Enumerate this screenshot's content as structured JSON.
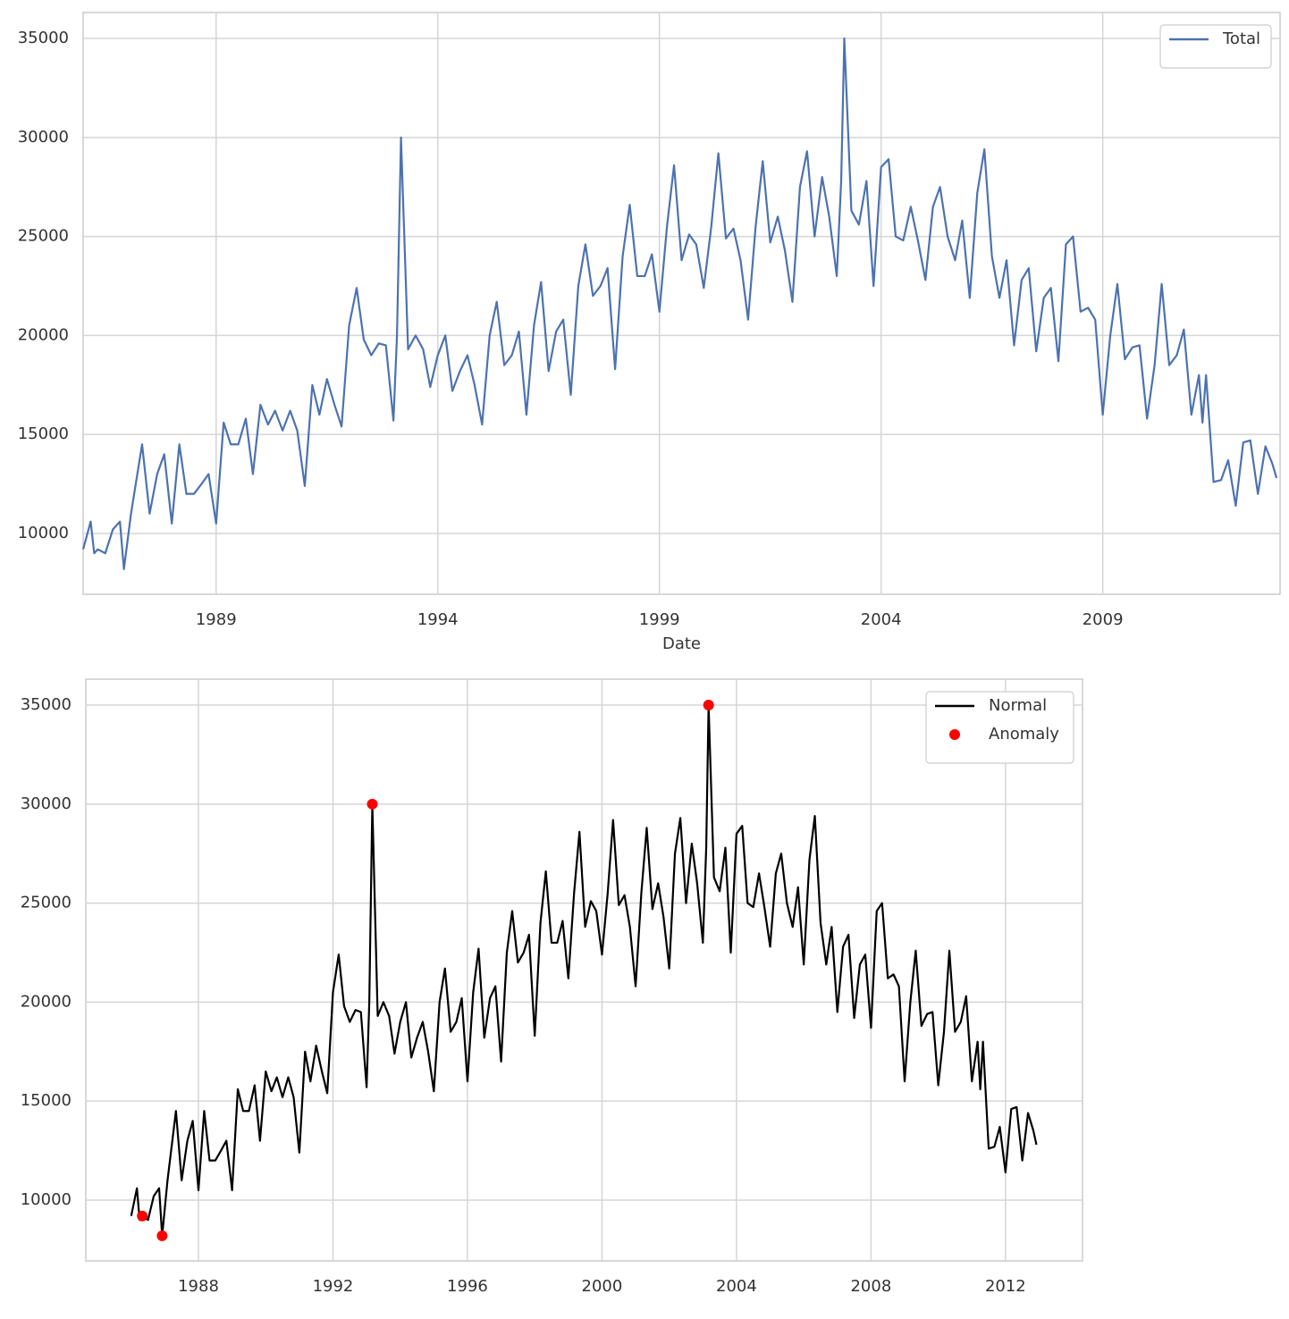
{
  "chart_data": [
    {
      "type": "line",
      "xlabel": "Date",
      "grid": true,
      "legend": "upper right",
      "xlim": [
        1986.0,
        2013.0
      ],
      "ylim": [
        6930,
        36310
      ],
      "xticks": [
        1989,
        1994,
        1999,
        2004,
        2009
      ],
      "yticks": [
        10000,
        15000,
        20000,
        25000,
        30000,
        35000
      ],
      "x": [
        1986.0,
        1986.17,
        1986.25,
        1986.33,
        1986.5,
        1986.67,
        1986.83,
        1986.92,
        1987.08,
        1987.33,
        1987.5,
        1987.67,
        1987.83,
        1988.0,
        1988.17,
        1988.33,
        1988.5,
        1988.67,
        1988.83,
        1989.0,
        1989.17,
        1989.33,
        1989.5,
        1989.67,
        1989.83,
        1990.0,
        1990.17,
        1990.33,
        1990.5,
        1990.67,
        1990.83,
        1991.0,
        1991.17,
        1991.33,
        1991.5,
        1991.67,
        1991.83,
        1992.0,
        1992.17,
        1992.33,
        1992.5,
        1992.67,
        1992.83,
        1993.0,
        1993.08,
        1993.17,
        1993.33,
        1993.5,
        1993.67,
        1993.83,
        1994.0,
        1994.17,
        1994.33,
        1994.5,
        1994.67,
        1994.83,
        1995.0,
        1995.17,
        1995.33,
        1995.5,
        1995.67,
        1995.83,
        1996.0,
        1996.17,
        1996.33,
        1996.5,
        1996.67,
        1996.83,
        1997.0,
        1997.17,
        1997.33,
        1997.5,
        1997.67,
        1997.83,
        1998.0,
        1998.17,
        1998.33,
        1998.5,
        1998.67,
        1998.83,
        1999.0,
        1999.17,
        1999.33,
        1999.5,
        1999.67,
        1999.83,
        2000.0,
        2000.17,
        2000.33,
        2000.5,
        2000.67,
        2000.83,
        2001.0,
        2001.17,
        2001.33,
        2001.5,
        2001.67,
        2001.83,
        2002.0,
        2002.17,
        2002.33,
        2002.5,
        2002.67,
        2002.83,
        2003.0,
        2003.1,
        2003.17,
        2003.33,
        2003.5,
        2003.67,
        2003.83,
        2004.0,
        2004.17,
        2004.33,
        2004.5,
        2004.67,
        2004.83,
        2005.0,
        2005.17,
        2005.33,
        2005.5,
        2005.67,
        2005.83,
        2006.0,
        2006.17,
        2006.33,
        2006.5,
        2006.67,
        2006.83,
        2007.0,
        2007.17,
        2007.33,
        2007.5,
        2007.67,
        2007.83,
        2008.0,
        2008.17,
        2008.33,
        2008.5,
        2008.67,
        2008.83,
        2009.0,
        2009.17,
        2009.33,
        2009.5,
        2009.67,
        2009.83,
        2010.0,
        2010.17,
        2010.33,
        2010.5,
        2010.67,
        2010.83,
        2011.0,
        2011.17,
        2011.25,
        2011.33,
        2011.5,
        2011.67,
        2011.83,
        2012.0,
        2012.17,
        2012.33,
        2012.5,
        2012.67,
        2012.83,
        2012.92
      ],
      "series": [
        {
          "name": "Total",
          "color": "#4c72b0",
          "values": [
            9200,
            10600,
            9000,
            9200,
            9000,
            10200,
            10600,
            8200,
            11000,
            14500,
            11000,
            13000,
            14000,
            10500,
            14500,
            12000,
            12000,
            12500,
            13000,
            10500,
            15600,
            14500,
            14500,
            15800,
            13000,
            16500,
            15500,
            16200,
            15200,
            16200,
            15200,
            12400,
            17500,
            16000,
            17800,
            16500,
            15400,
            20500,
            22400,
            19800,
            19000,
            19600,
            19500,
            15700,
            20000,
            30000,
            19300,
            20000,
            19300,
            17400,
            19000,
            20000,
            17200,
            18200,
            19000,
            17500,
            15500,
            20000,
            21700,
            18500,
            19000,
            20200,
            16000,
            20500,
            22700,
            18200,
            20200,
            20800,
            17000,
            22500,
            24600,
            22000,
            22500,
            23400,
            18300,
            24000,
            26600,
            23000,
            23000,
            24100,
            21200,
            25500,
            28600,
            23800,
            25100,
            24600,
            22400,
            25500,
            29200,
            24900,
            25400,
            23800,
            20800,
            25500,
            28800,
            24700,
            26000,
            24300,
            21700,
            27500,
            29300,
            25000,
            28000,
            26000,
            23000,
            27800,
            35000,
            26300,
            25600,
            27800,
            22500,
            28500,
            28900,
            25000,
            24800,
            26500,
            24800,
            22800,
            26500,
            27500,
            25000,
            23800,
            25800,
            21900,
            27200,
            29400,
            24000,
            21900,
            23800,
            19500,
            22800,
            23400,
            19200,
            21900,
            22400,
            18700,
            24600,
            25000,
            21200,
            21400,
            20800,
            16000,
            20000,
            22600,
            18800,
            19400,
            19500,
            15800,
            18500,
            22600,
            18500,
            19000,
            20300,
            16000,
            18000,
            15600,
            18000,
            12600,
            12700,
            13700,
            11400,
            14600,
            14700,
            12000,
            14400,
            13500,
            12800
          ]
        }
      ]
    },
    {
      "type": "line",
      "grid": true,
      "legend": "upper right",
      "xlim": [
        1984.65,
        2014.29
      ],
      "ylim": [
        6930,
        36310
      ],
      "xticks": [
        1988,
        1992,
        1996,
        2000,
        2004,
        2008,
        2012
      ],
      "yticks": [
        10000,
        15000,
        20000,
        25000,
        30000,
        35000
      ],
      "x": [
        1986.0,
        1986.17,
        1986.25,
        1986.33,
        1986.5,
        1986.67,
        1986.83,
        1986.92,
        1987.08,
        1987.33,
        1987.5,
        1987.67,
        1987.83,
        1988.0,
        1988.17,
        1988.33,
        1988.5,
        1988.67,
        1988.83,
        1989.0,
        1989.17,
        1989.33,
        1989.5,
        1989.67,
        1989.83,
        1990.0,
        1990.17,
        1990.33,
        1990.5,
        1990.67,
        1990.83,
        1991.0,
        1991.17,
        1991.33,
        1991.5,
        1991.67,
        1991.83,
        1992.0,
        1992.17,
        1992.33,
        1992.5,
        1992.67,
        1992.83,
        1993.0,
        1993.08,
        1993.17,
        1993.33,
        1993.5,
        1993.67,
        1993.83,
        1994.0,
        1994.17,
        1994.33,
        1994.5,
        1994.67,
        1994.83,
        1995.0,
        1995.17,
        1995.33,
        1995.5,
        1995.67,
        1995.83,
        1996.0,
        1996.17,
        1996.33,
        1996.5,
        1996.67,
        1996.83,
        1997.0,
        1997.17,
        1997.33,
        1997.5,
        1997.67,
        1997.83,
        1998.0,
        1998.17,
        1998.33,
        1998.5,
        1998.67,
        1998.83,
        1999.0,
        1999.17,
        1999.33,
        1999.5,
        1999.67,
        1999.83,
        2000.0,
        2000.17,
        2000.33,
        2000.5,
        2000.67,
        2000.83,
        2001.0,
        2001.17,
        2001.33,
        2001.5,
        2001.67,
        2001.83,
        2002.0,
        2002.17,
        2002.33,
        2002.5,
        2002.67,
        2002.83,
        2003.0,
        2003.1,
        2003.17,
        2003.33,
        2003.5,
        2003.67,
        2003.83,
        2004.0,
        2004.17,
        2004.33,
        2004.5,
        2004.67,
        2004.83,
        2005.0,
        2005.17,
        2005.33,
        2005.5,
        2005.67,
        2005.83,
        2006.0,
        2006.17,
        2006.33,
        2006.5,
        2006.67,
        2006.83,
        2007.0,
        2007.17,
        2007.33,
        2007.5,
        2007.67,
        2007.83,
        2008.0,
        2008.17,
        2008.33,
        2008.5,
        2008.67,
        2008.83,
        2009.0,
        2009.17,
        2009.33,
        2009.5,
        2009.67,
        2009.83,
        2010.0,
        2010.17,
        2010.33,
        2010.5,
        2010.67,
        2010.83,
        2011.0,
        2011.17,
        2011.25,
        2011.33,
        2011.5,
        2011.67,
        2011.83,
        2012.0,
        2012.17,
        2012.33,
        2012.5,
        2012.67,
        2012.83,
        2012.92
      ],
      "series": [
        {
          "name": "Normal",
          "color": "#000000",
          "values": [
            9200,
            10600,
            9000,
            9200,
            9000,
            10200,
            10600,
            8200,
            11000,
            14500,
            11000,
            13000,
            14000,
            10500,
            14500,
            12000,
            12000,
            12500,
            13000,
            10500,
            15600,
            14500,
            14500,
            15800,
            13000,
            16500,
            15500,
            16200,
            15200,
            16200,
            15200,
            12400,
            17500,
            16000,
            17800,
            16500,
            15400,
            20500,
            22400,
            19800,
            19000,
            19600,
            19500,
            15700,
            20000,
            30000,
            19300,
            20000,
            19300,
            17400,
            19000,
            20000,
            17200,
            18200,
            19000,
            17500,
            15500,
            20000,
            21700,
            18500,
            19000,
            20200,
            16000,
            20500,
            22700,
            18200,
            20200,
            20800,
            17000,
            22500,
            24600,
            22000,
            22500,
            23400,
            18300,
            24000,
            26600,
            23000,
            23000,
            24100,
            21200,
            25500,
            28600,
            23800,
            25100,
            24600,
            22400,
            25500,
            29200,
            24900,
            25400,
            23800,
            20800,
            25500,
            28800,
            24700,
            26000,
            24300,
            21700,
            27500,
            29300,
            25000,
            28000,
            26000,
            23000,
            27800,
            35000,
            26300,
            25600,
            27800,
            22500,
            28500,
            28900,
            25000,
            24800,
            26500,
            24800,
            22800,
            26500,
            27500,
            25000,
            23800,
            25800,
            21900,
            27200,
            29400,
            24000,
            21900,
            23800,
            19500,
            22800,
            23400,
            19200,
            21900,
            22400,
            18700,
            24600,
            25000,
            21200,
            21400,
            20800,
            16000,
            20000,
            22600,
            18800,
            19400,
            19500,
            15800,
            18500,
            22600,
            18500,
            19000,
            20300,
            16000,
            18000,
            15600,
            18000,
            12600,
            12700,
            13700,
            11400,
            14600,
            14700,
            12000,
            14400,
            13500,
            12800
          ]
        },
        {
          "name": "Anomaly",
          "color": "#ff0000",
          "type": "scatter",
          "x": [
            1986.33,
            1986.92,
            1993.17,
            2003.17
          ],
          "values": [
            9200,
            8200,
            30000,
            35000
          ]
        }
      ]
    }
  ]
}
